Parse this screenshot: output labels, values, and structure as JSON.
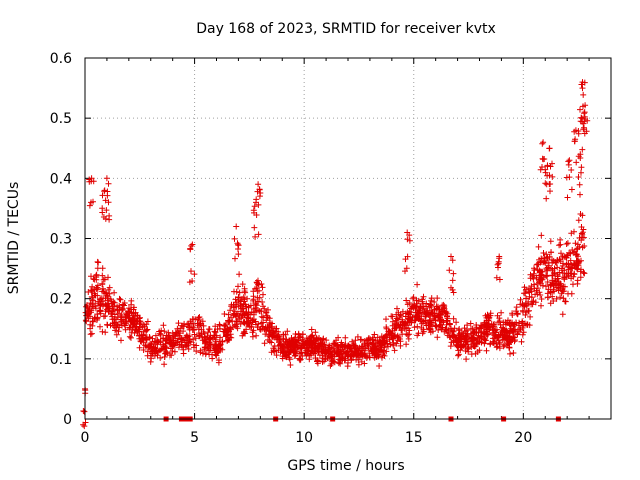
{
  "chart_data": {
    "type": "scatter",
    "title": "Day 168 of 2023, SRMTID for receiver kvtx",
    "xlabel": "GPS time / hours",
    "ylabel": "SRMTID / TECUs",
    "xlim": [
      0,
      24
    ],
    "ylim": [
      0,
      0.6
    ],
    "x_ticks": [
      0,
      5,
      10,
      15,
      20
    ],
    "y_ticks": [
      0,
      0.1,
      0.2,
      0.3,
      0.4,
      0.5,
      0.6
    ],
    "x_tick_labels": [
      "0",
      "5",
      "10",
      "15",
      "20"
    ],
    "y_tick_labels": [
      "0",
      "0.1",
      "0.2",
      "0.3",
      "0.4",
      "0.5",
      "0.6"
    ],
    "grid": true,
    "marker": "plus",
    "color": "#e00000",
    "series": [
      {
        "name": "SRMTID",
        "envelope": {
          "x": [
            0,
            0.5,
            1,
            1.5,
            2,
            2.5,
            3,
            3.5,
            4,
            4.5,
            5,
            5.5,
            6,
            6.5,
            7,
            7.5,
            7.9,
            8.5,
            9,
            9.5,
            10,
            10.5,
            11,
            11.5,
            12,
            12.5,
            13,
            13.5,
            14,
            14.5,
            15,
            15.5,
            16,
            16.5,
            17,
            17.5,
            18,
            18.5,
            19,
            19.5,
            20,
            20.5,
            21,
            21.5,
            22,
            22.5,
            22.8
          ],
          "center": [
            0.17,
            0.2,
            0.19,
            0.17,
            0.17,
            0.15,
            0.12,
            0.12,
            0.13,
            0.14,
            0.14,
            0.13,
            0.12,
            0.15,
            0.19,
            0.16,
            0.2,
            0.14,
            0.12,
            0.12,
            0.12,
            0.12,
            0.11,
            0.11,
            0.11,
            0.11,
            0.12,
            0.12,
            0.14,
            0.16,
            0.18,
            0.17,
            0.17,
            0.16,
            0.13,
            0.13,
            0.14,
            0.15,
            0.14,
            0.15,
            0.18,
            0.22,
            0.25,
            0.24,
            0.25,
            0.27,
            0.3
          ],
          "spread": [
            0.08,
            0.1,
            0.09,
            0.06,
            0.05,
            0.05,
            0.04,
            0.04,
            0.04,
            0.05,
            0.06,
            0.05,
            0.05,
            0.06,
            0.07,
            0.06,
            0.09,
            0.05,
            0.04,
            0.04,
            0.04,
            0.04,
            0.04,
            0.04,
            0.04,
            0.04,
            0.04,
            0.04,
            0.05,
            0.06,
            0.06,
            0.05,
            0.05,
            0.05,
            0.04,
            0.04,
            0.04,
            0.05,
            0.05,
            0.06,
            0.07,
            0.08,
            0.09,
            0.08,
            0.09,
            0.11,
            0.13
          ]
        },
        "peaks": [
          {
            "x": 0.3,
            "y": 0.4
          },
          {
            "x": 1.0,
            "y": 0.4
          },
          {
            "x": 0.9,
            "y": 0.38
          },
          {
            "x": 4.9,
            "y": 0.29
          },
          {
            "x": 6.9,
            "y": 0.32
          },
          {
            "x": 7.9,
            "y": 0.39
          },
          {
            "x": 7.8,
            "y": 0.36
          },
          {
            "x": 14.7,
            "y": 0.31
          },
          {
            "x": 16.7,
            "y": 0.27
          },
          {
            "x": 18.9,
            "y": 0.27
          },
          {
            "x": 20.9,
            "y": 0.46
          },
          {
            "x": 21.2,
            "y": 0.45
          },
          {
            "x": 21.1,
            "y": 0.42
          },
          {
            "x": 22.4,
            "y": 0.48
          },
          {
            "x": 22.7,
            "y": 0.56
          },
          {
            "x": 22.7,
            "y": 0.55
          },
          {
            "x": 22.8,
            "y": 0.51
          },
          {
            "x": 22.6,
            "y": 0.44
          },
          {
            "x": 22.1,
            "y": 0.43
          },
          {
            "x": 0.0,
            "y": 0.05
          }
        ]
      },
      {
        "name": "zero-level markers",
        "x": [
          3.7,
          4.4,
          4.6,
          4.8,
          8.7,
          11.3,
          16.7,
          19.1,
          21.6
        ],
        "y": [
          0,
          0,
          0,
          0,
          0,
          0,
          0,
          0,
          0
        ]
      }
    ]
  }
}
